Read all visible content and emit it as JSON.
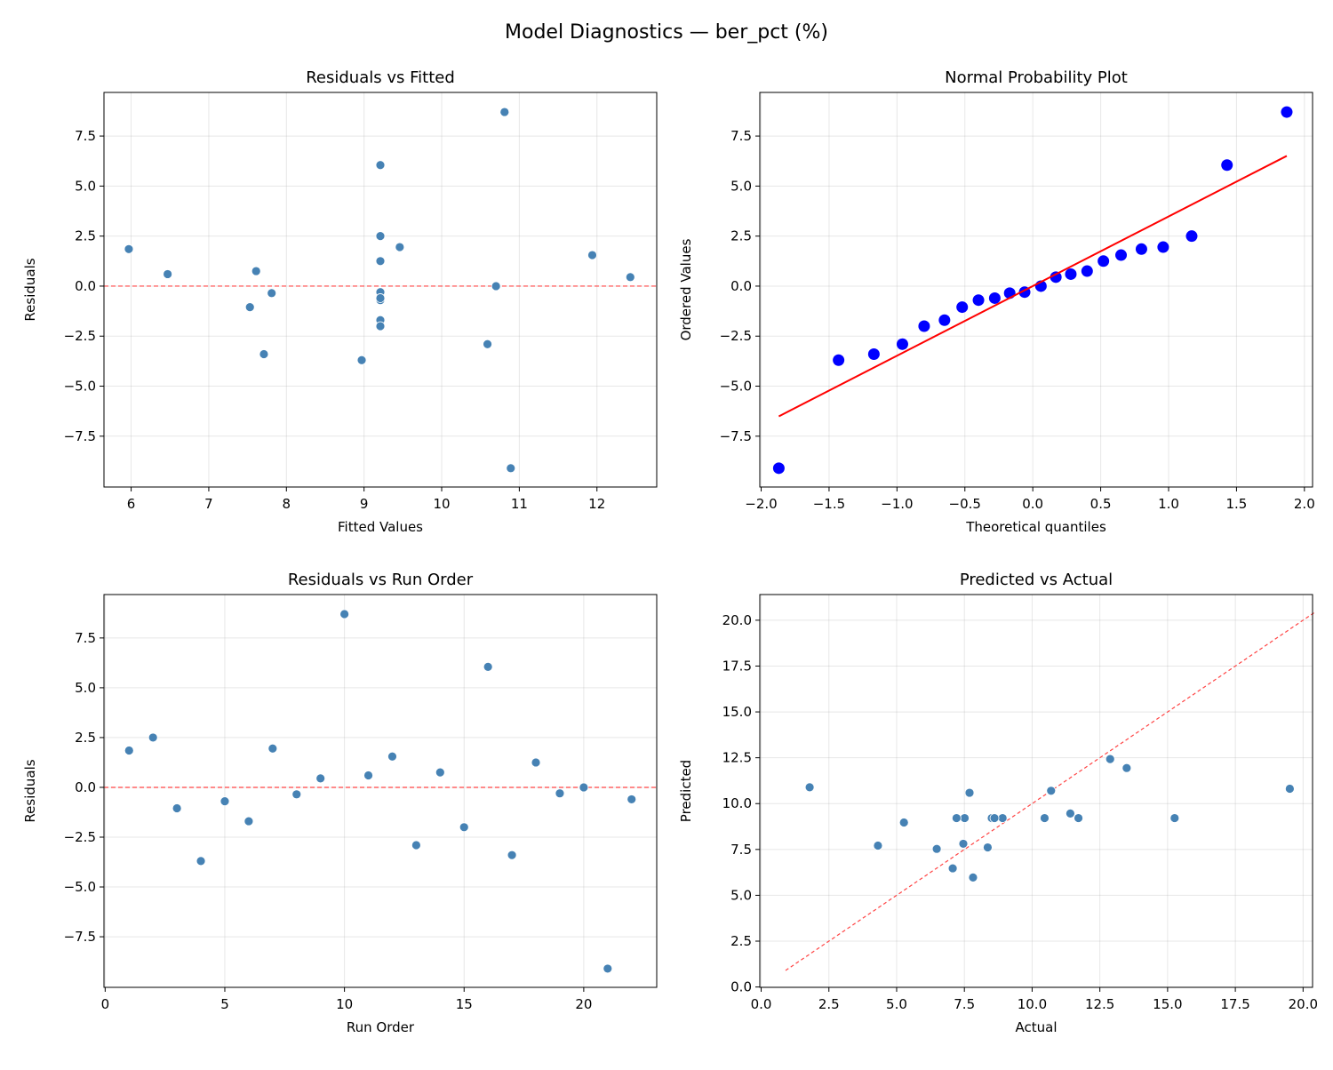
{
  "suptitle": "Model Diagnostics — ber_pct (%)",
  "colors": {
    "point": "#4682b4",
    "qq_point": "#0000ff",
    "qq_line": "#ff0000",
    "ref_line": "#ff4444"
  },
  "chart_data": [
    {
      "type": "scatter",
      "title": "Residuals vs Fitted",
      "xlabel": "Fitted Values",
      "ylabel": "Residuals",
      "xlim": [
        5.65,
        12.77
      ],
      "ylim": [
        -10.04,
        9.68
      ],
      "xticks": [
        6,
        7,
        8,
        9,
        10,
        11,
        12
      ],
      "xtick_labels": [
        "6",
        "7",
        "8",
        "9",
        "10",
        "11",
        "12"
      ],
      "yticks": [
        -7.5,
        -5,
        -2.5,
        0,
        2.5,
        5,
        7.5
      ],
      "ytick_labels": [
        "−7.5",
        "−5.0",
        "−2.5",
        "0.0",
        "2.5",
        "5.0",
        "7.5"
      ],
      "grid": true,
      "hline": 0,
      "x": [
        5.97,
        9.21,
        7.53,
        8.97,
        9.21,
        9.21,
        9.46,
        7.81,
        12.43,
        10.81,
        6.47,
        11.94,
        10.59,
        7.61,
        9.21,
        9.21,
        7.71,
        9.21,
        9.21,
        10.7,
        10.89,
        9.21
      ],
      "y": [
        1.85,
        2.5,
        -1.05,
        -3.7,
        -0.7,
        -1.7,
        1.95,
        -0.35,
        0.45,
        8.7,
        0.6,
        1.55,
        -2.9,
        0.75,
        -2.0,
        6.05,
        -3.4,
        1.25,
        -0.3,
        0.0,
        -9.1,
        -0.6
      ]
    },
    {
      "type": "scatter",
      "title": "Normal Probability Plot",
      "xlabel": "Theoretical quantiles",
      "ylabel": "Ordered Values",
      "xlim": [
        -2.01,
        2.06
      ],
      "ylim": [
        -10.04,
        9.68
      ],
      "xticks": [
        -2,
        -1.5,
        -1,
        -0.5,
        0,
        0.5,
        1,
        1.5,
        2
      ],
      "xtick_labels": [
        "−2.0",
        "−1.5",
        "−1.0",
        "−0.5",
        "0.0",
        "0.5",
        "1.0",
        "1.5",
        "2.0"
      ],
      "yticks": [
        -7.5,
        -5,
        -2.5,
        0,
        2.5,
        5,
        7.5
      ],
      "ytick_labels": [
        "−7.5",
        "−5.0",
        "−2.5",
        "0.0",
        "2.5",
        "5.0",
        "7.5"
      ],
      "grid": true,
      "fit_line": {
        "slope": 3.48,
        "intercept": 0.0
      },
      "x": [
        -1.87,
        -1.43,
        -1.17,
        -0.96,
        -0.8,
        -0.65,
        -0.52,
        -0.4,
        -0.28,
        -0.17,
        -0.06,
        0.06,
        0.17,
        0.28,
        0.4,
        0.52,
        0.65,
        0.8,
        0.96,
        1.17,
        1.43,
        1.87
      ],
      "y": [
        -9.1,
        -3.7,
        -3.4,
        -2.9,
        -2.0,
        -1.7,
        -1.05,
        -0.7,
        -0.6,
        -0.35,
        -0.3,
        0.0,
        0.45,
        0.6,
        0.75,
        1.25,
        1.55,
        1.85,
        1.95,
        2.5,
        6.05,
        8.7
      ]
    },
    {
      "type": "scatter",
      "title": "Residuals vs Run Order",
      "xlabel": "Run Order",
      "ylabel": "Residuals",
      "xlim": [
        -0.05,
        23.05
      ],
      "ylim": [
        -10.04,
        9.68
      ],
      "xticks": [
        0,
        5,
        10,
        15,
        20
      ],
      "xtick_labels": [
        "0",
        "5",
        "10",
        "15",
        "20"
      ],
      "yticks": [
        -7.5,
        -5,
        -2.5,
        0,
        2.5,
        5,
        7.5
      ],
      "ytick_labels": [
        "−7.5",
        "−5.0",
        "−2.5",
        "0.0",
        "2.5",
        "5.0",
        "7.5"
      ],
      "grid": true,
      "hline": 0,
      "x": [
        1,
        2,
        3,
        4,
        5,
        6,
        7,
        8,
        9,
        10,
        11,
        12,
        13,
        14,
        15,
        16,
        17,
        18,
        19,
        20,
        21,
        22
      ],
      "y": [
        1.85,
        2.5,
        -1.05,
        -3.7,
        -0.7,
        -1.7,
        1.95,
        -0.35,
        0.45,
        8.7,
        0.6,
        1.55,
        -2.9,
        0.75,
        -2.0,
        6.05,
        -3.4,
        1.25,
        -0.3,
        0.0,
        -9.1,
        -0.6
      ]
    },
    {
      "type": "scatter",
      "title": "Predicted vs Actual",
      "xlabel": "Actual",
      "ylabel": "Predicted",
      "xlim": [
        -0.05,
        20.35
      ],
      "ylim": [
        -0.02,
        21.4
      ],
      "xticks": [
        0,
        2.5,
        5,
        7.5,
        10,
        12.5,
        15,
        17.5,
        20
      ],
      "xtick_labels": [
        "0.0",
        "2.5",
        "5.0",
        "7.5",
        "10.0",
        "12.5",
        "15.0",
        "17.5",
        "20.0"
      ],
      "yticks": [
        0,
        2.5,
        5,
        7.5,
        10,
        12.5,
        15,
        17.5,
        20
      ],
      "ytick_labels": [
        "0.0",
        "2.5",
        "5.0",
        "7.5",
        "10.0",
        "12.5",
        "15.0",
        "17.5",
        "20.0"
      ],
      "grid": true,
      "diagonal": [
        0.9,
        20.4
      ],
      "x": [
        7.82,
        11.71,
        6.48,
        5.27,
        8.51,
        7.51,
        11.41,
        7.46,
        12.88,
        19.51,
        7.07,
        13.49,
        7.69,
        8.36,
        7.21,
        15.26,
        4.31,
        10.46,
        8.91,
        10.7,
        1.79,
        8.61
      ],
      "y": [
        5.97,
        9.21,
        7.53,
        8.97,
        9.21,
        9.21,
        9.46,
        7.81,
        12.43,
        10.81,
        6.47,
        11.94,
        10.59,
        7.61,
        9.21,
        9.21,
        7.71,
        9.21,
        9.21,
        10.7,
        10.89,
        9.21
      ]
    }
  ]
}
